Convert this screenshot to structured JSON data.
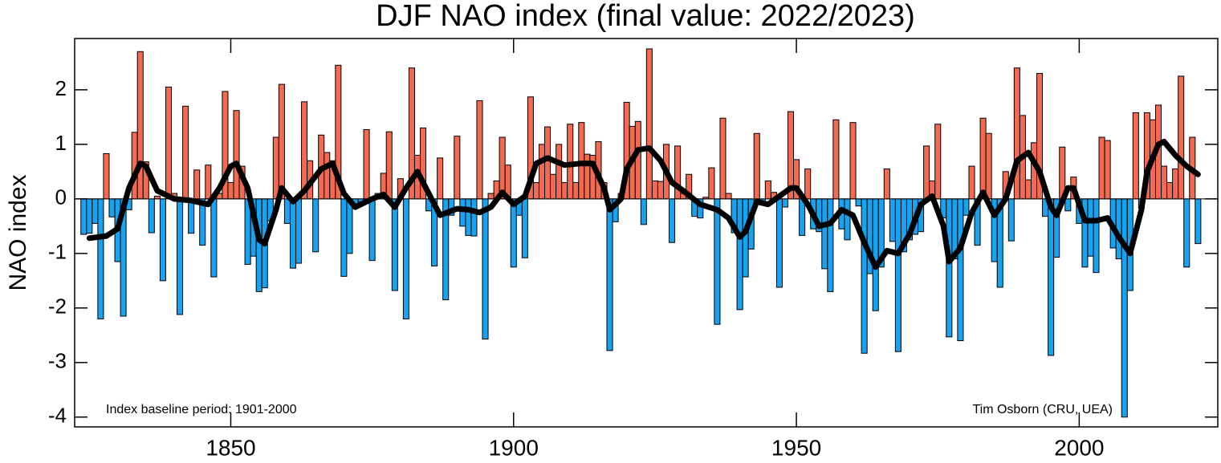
{
  "chart_data": {
    "type": "bar",
    "title": "DJF NAO index (final value: 2022/2023)",
    "ylabel": "NAO index",
    "annotations": [
      "Index baseline period: 1901-2000",
      "Tim Osborn (CRU, UEA)"
    ],
    "positive_color": "#f26a50",
    "negative_color": "#18a3f0",
    "xlim": [
      1822.4,
      2024.5
    ],
    "xticks": [
      1850,
      1900,
      1950,
      2000
    ],
    "ylim": [
      -4.18,
      2.94
    ],
    "yticks": [
      -4,
      -3,
      -2,
      -1,
      0,
      1,
      2
    ],
    "x": [
      1824,
      1825,
      1826,
      1827,
      1828,
      1829,
      1830,
      1831,
      1832,
      1833,
      1834,
      1835,
      1836,
      1837,
      1838,
      1839,
      1840,
      1841,
      1842,
      1843,
      1844,
      1845,
      1846,
      1847,
      1848,
      1849,
      1850,
      1851,
      1852,
      1853,
      1854,
      1855,
      1856,
      1857,
      1858,
      1859,
      1860,
      1861,
      1862,
      1863,
      1864,
      1865,
      1866,
      1867,
      1868,
      1869,
      1870,
      1871,
      1872,
      1873,
      1874,
      1875,
      1876,
      1877,
      1878,
      1879,
      1880,
      1881,
      1882,
      1883,
      1884,
      1885,
      1886,
      1887,
      1888,
      1889,
      1890,
      1891,
      1892,
      1893,
      1894,
      1895,
      1896,
      1897,
      1898,
      1899,
      1900,
      1901,
      1902,
      1903,
      1904,
      1905,
      1906,
      1907,
      1908,
      1909,
      1910,
      1911,
      1912,
      1913,
      1914,
      1915,
      1916,
      1917,
      1918,
      1919,
      1920,
      1921,
      1922,
      1923,
      1924,
      1925,
      1926,
      1927,
      1928,
      1929,
      1930,
      1931,
      1932,
      1933,
      1934,
      1935,
      1936,
      1937,
      1938,
      1939,
      1940,
      1941,
      1942,
      1943,
      1944,
      1945,
      1946,
      1947,
      1948,
      1949,
      1950,
      1951,
      1952,
      1953,
      1954,
      1955,
      1956,
      1957,
      1958,
      1959,
      1960,
      1961,
      1962,
      1963,
      1964,
      1965,
      1966,
      1967,
      1968,
      1969,
      1970,
      1971,
      1972,
      1973,
      1974,
      1975,
      1976,
      1977,
      1978,
      1979,
      1980,
      1981,
      1982,
      1983,
      1984,
      1985,
      1986,
      1987,
      1988,
      1989,
      1990,
      1991,
      1992,
      1993,
      1994,
      1995,
      1996,
      1997,
      1998,
      1999,
      2000,
      2001,
      2002,
      2003,
      2004,
      2005,
      2006,
      2007,
      2008,
      2009,
      2010,
      2011,
      2012,
      2013,
      2014,
      2015,
      2016,
      2017,
      2018,
      2019,
      2020,
      2021
    ],
    "values": [
      -0.65,
      -0.63,
      -0.45,
      -2.2,
      0.83,
      -0.33,
      -1.15,
      -2.15,
      -0.2,
      1.22,
      2.7,
      0.68,
      -0.62,
      0.05,
      -1.5,
      2.05,
      0.1,
      -2.12,
      1.7,
      -0.63,
      0.53,
      -0.85,
      0.62,
      -1.43,
      0.1,
      1.97,
      0.3,
      1.62,
      0.6,
      -1.2,
      -1.05,
      -1.7,
      -1.63,
      -0.4,
      1.13,
      2.1,
      -0.45,
      -1.27,
      -1.18,
      1.78,
      0.7,
      -0.97,
      1.17,
      0.85,
      0.7,
      2.45,
      -1.42,
      -1.0,
      -0.1,
      -0.05,
      1.27,
      -1.13,
      0.1,
      0.47,
      1.23,
      -1.68,
      0.37,
      -2.2,
      2.4,
      0.8,
      1.3,
      -0.22,
      -1.23,
      0.75,
      -1.85,
      -0.3,
      1.15,
      -0.5,
      -0.67,
      -0.68,
      1.8,
      -2.57,
      0.1,
      0.33,
      1.13,
      0.62,
      -1.25,
      -0.3,
      -1.08,
      1.87,
      0.3,
      1.0,
      1.32,
      0.45,
      1.0,
      0.3,
      1.37,
      0.3,
      1.4,
      0.82,
      0.8,
      1.05,
      0.3,
      -2.78,
      -0.42,
      0.1,
      1.77,
      1.33,
      1.42,
      -0.47,
      2.75,
      0.33,
      0.32,
      1.0,
      -0.8,
      0.97,
      0.1,
      0.45,
      -0.32,
      -0.35,
      0.03,
      0.57,
      -2.3,
      1.48,
      0.1,
      -0.62,
      -2.03,
      -1.43,
      -0.92,
      1.2,
      -0.1,
      0.33,
      0.12,
      -1.62,
      -0.15,
      1.6,
      0.72,
      -0.67,
      0.55,
      -0.55,
      -0.6,
      -1.28,
      -1.7,
      1.45,
      -0.55,
      -0.75,
      1.4,
      -0.13,
      -2.83,
      -1.37,
      -2.05,
      -1.25,
      0.55,
      -0.78,
      -2.8,
      -0.97,
      -0.75,
      -0.65,
      -0.6,
      0.97,
      0.33,
      1.37,
      -0.35,
      -2.53,
      -1.1,
      -2.6,
      -0.3,
      0.6,
      -0.85,
      1.48,
      1.2,
      -1.15,
      -1.62,
      0.5,
      -0.77,
      2.4,
      1.53,
      0.35,
      1.03,
      2.3,
      -0.32,
      -2.87,
      -1.07,
      0.95,
      -0.22,
      0.4,
      -0.45,
      -1.25,
      -1.05,
      -1.35,
      1.13,
      1.07,
      -0.9,
      -1.1,
      -4.0,
      -1.68,
      1.58,
      -0.17,
      1.58,
      1.45,
      1.72,
      0.6,
      0.3,
      0.55,
      2.25,
      -1.25,
      1.13,
      -0.82
    ],
    "smooth": {
      "color": "#000000",
      "x": [
        1825,
        1828,
        1830,
        1832,
        1834,
        1835,
        1837,
        1840,
        1843,
        1846,
        1848,
        1850,
        1851,
        1853,
        1855,
        1856,
        1858,
        1859,
        1861,
        1863,
        1866,
        1868,
        1870,
        1872,
        1875,
        1877,
        1879,
        1881,
        1883,
        1885,
        1887,
        1890,
        1892,
        1894,
        1896,
        1898,
        1900,
        1902,
        1904,
        1906,
        1909,
        1912,
        1914,
        1916,
        1917,
        1919,
        1920,
        1922,
        1924,
        1926,
        1928,
        1930,
        1933,
        1936,
        1938,
        1940,
        1941,
        1943,
        1945,
        1947,
        1949,
        1950,
        1952,
        1954,
        1956,
        1958,
        1960,
        1962,
        1964,
        1966,
        1968,
        1970,
        1972,
        1974,
        1976,
        1977,
        1979,
        1981,
        1983,
        1985,
        1987,
        1989,
        1991,
        1993,
        1995,
        1996,
        1998,
        1999,
        2001,
        2003,
        2005,
        2007,
        2009,
        2011,
        2012,
        2014,
        2015,
        2017,
        2019,
        2021
      ],
      "values": [
        -0.72,
        -0.68,
        -0.55,
        0.2,
        0.65,
        0.6,
        0.15,
        0.0,
        -0.03,
        -0.1,
        0.2,
        0.6,
        0.65,
        0.2,
        -0.75,
        -0.82,
        -0.2,
        0.2,
        -0.05,
        0.15,
        0.55,
        0.65,
        0.1,
        -0.15,
        0.0,
        0.08,
        -0.15,
        0.2,
        0.5,
        0.1,
        -0.3,
        -0.18,
        -0.2,
        -0.25,
        -0.15,
        0.12,
        -0.1,
        0.05,
        0.65,
        0.75,
        0.62,
        0.65,
        0.65,
        0.2,
        -0.2,
        0.0,
        0.55,
        0.9,
        0.93,
        0.7,
        0.3,
        0.15,
        -0.1,
        -0.2,
        -0.35,
        -0.7,
        -0.6,
        -0.05,
        -0.1,
        0.05,
        0.2,
        0.2,
        -0.1,
        -0.5,
        -0.45,
        -0.2,
        -0.3,
        -0.8,
        -1.25,
        -0.95,
        -1.0,
        -0.65,
        -0.1,
        0.05,
        -0.5,
        -1.15,
        -0.9,
        -0.25,
        0.12,
        -0.3,
        0.0,
        0.7,
        0.85,
        0.5,
        -0.15,
        -0.3,
        0.2,
        0.2,
        -0.4,
        -0.4,
        -0.35,
        -0.7,
        -1.0,
        -0.2,
        0.5,
        1.0,
        1.05,
        0.8,
        0.6,
        0.45
      ]
    }
  }
}
